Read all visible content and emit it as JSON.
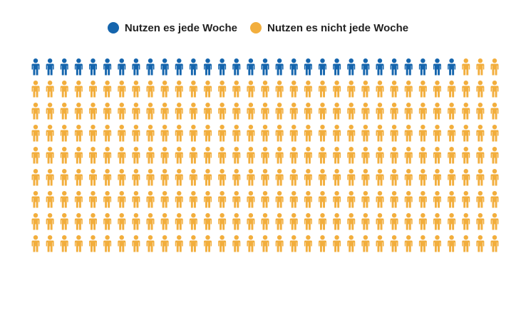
{
  "chart_data": {
    "type": "pictogram",
    "total_icons": 297,
    "rows": 9,
    "columns": 33,
    "series": [
      {
        "name": "Nutzen es jede Woche",
        "count": 30,
        "color": "#1565ad"
      },
      {
        "name": "Nutzen es nicht jede Woche",
        "count": 267,
        "color": "#f2ae3d"
      }
    ],
    "legend_position": "top-center"
  }
}
